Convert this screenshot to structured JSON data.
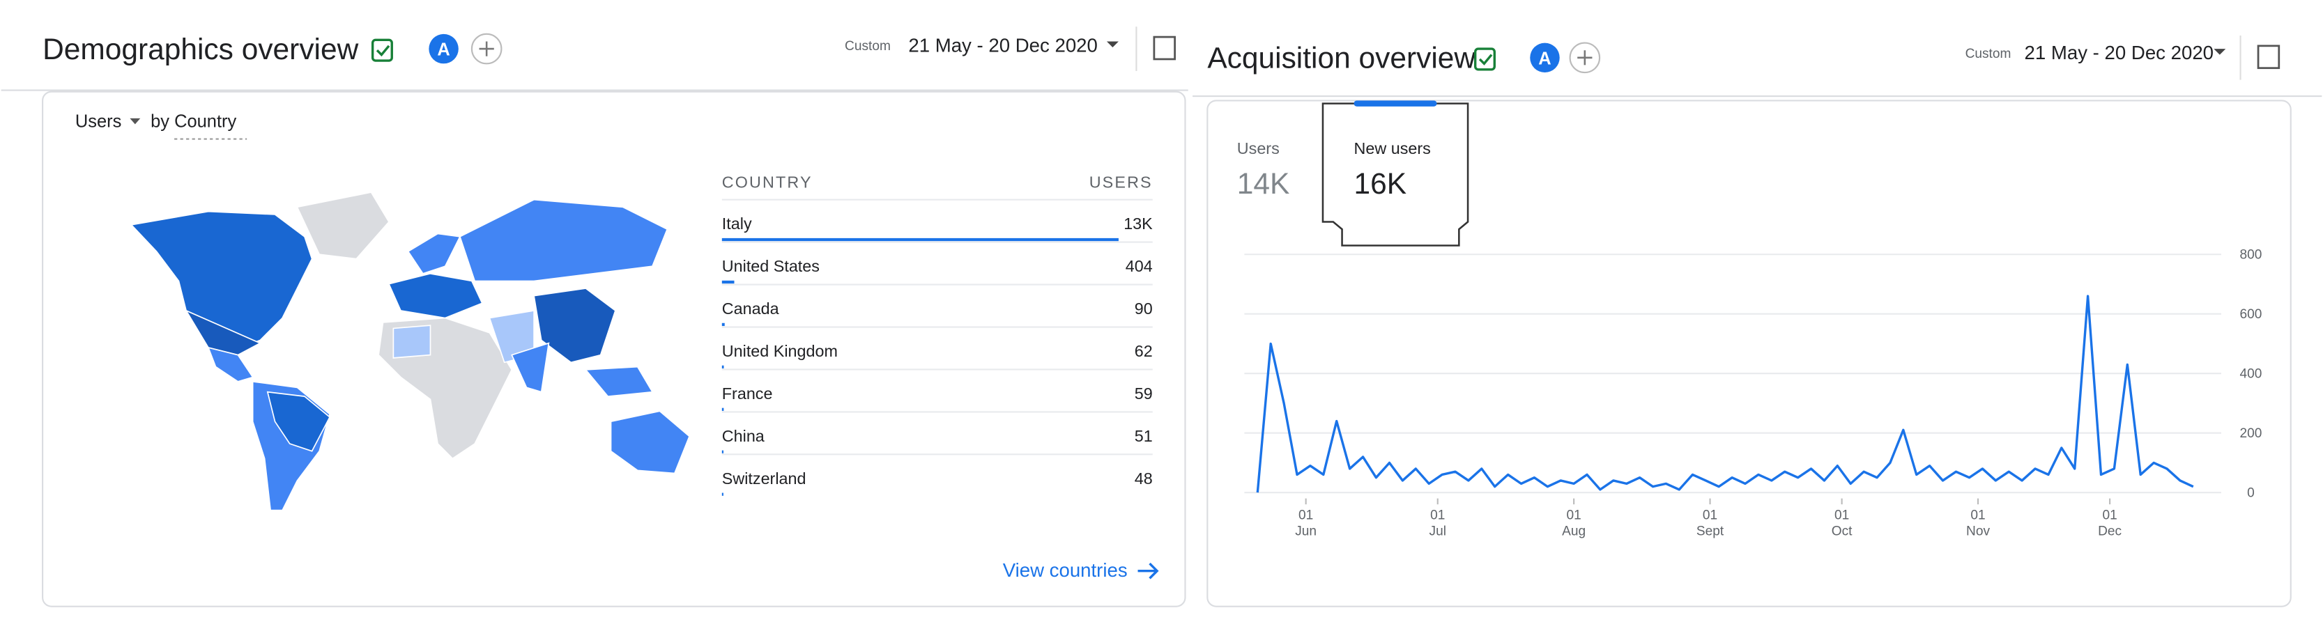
{
  "demographics": {
    "title": "Demographics overview",
    "badge": "A",
    "date_prefix": "Custom",
    "date_range": "21 May - 20 Dec 2020",
    "metric": "Users",
    "dimension": "by Country",
    "table": {
      "columns": [
        "COUNTRY",
        "USERS"
      ],
      "countries": [
        "Italy",
        "United States",
        "Canada",
        "United Kingdom",
        "France",
        "China",
        "Switzerland"
      ],
      "values": [
        13000,
        404,
        90,
        62,
        59,
        51,
        48
      ],
      "value_labels": [
        "13K",
        "404",
        "90",
        "62",
        "59",
        "51",
        "48"
      ]
    },
    "link": "View countries"
  },
  "acquisition": {
    "title": "Acquisition overview",
    "badge": "A",
    "date_prefix": "Custom",
    "date_range": "21 May - 20 Dec 2020",
    "tabs": [
      {
        "label": "Users",
        "value": "14K"
      },
      {
        "label": "New users",
        "value": "16K"
      }
    ]
  },
  "chart_data": {
    "type": "line",
    "color": "#1a73e8",
    "grid": true,
    "x": [
      "2020-05-21",
      "2020-05-24",
      "2020-05-27",
      "2020-05-30",
      "2020-06-02",
      "2020-06-05",
      "2020-06-08",
      "2020-06-11",
      "2020-06-14",
      "2020-06-17",
      "2020-06-20",
      "2020-06-23",
      "2020-06-26",
      "2020-06-29",
      "2020-07-02",
      "2020-07-05",
      "2020-07-08",
      "2020-07-11",
      "2020-07-14",
      "2020-07-17",
      "2020-07-20",
      "2020-07-23",
      "2020-07-26",
      "2020-07-29",
      "2020-08-01",
      "2020-08-04",
      "2020-08-07",
      "2020-08-10",
      "2020-08-13",
      "2020-08-16",
      "2020-08-19",
      "2020-08-22",
      "2020-08-25",
      "2020-08-28",
      "2020-08-31",
      "2020-09-03",
      "2020-09-06",
      "2020-09-09",
      "2020-09-12",
      "2020-09-15",
      "2020-09-18",
      "2020-09-21",
      "2020-09-24",
      "2020-09-27",
      "2020-09-30",
      "2020-10-03",
      "2020-10-06",
      "2020-10-09",
      "2020-10-12",
      "2020-10-15",
      "2020-10-18",
      "2020-10-21",
      "2020-10-24",
      "2020-10-27",
      "2020-10-30",
      "2020-11-02",
      "2020-11-05",
      "2020-11-08",
      "2020-11-11",
      "2020-11-14",
      "2020-11-17",
      "2020-11-20",
      "2020-11-23",
      "2020-11-26",
      "2020-11-29",
      "2020-12-02",
      "2020-12-05",
      "2020-12-08",
      "2020-12-11",
      "2020-12-14",
      "2020-12-17",
      "2020-12-20"
    ],
    "values": [
      0,
      500,
      300,
      60,
      90,
      60,
      240,
      80,
      120,
      50,
      100,
      40,
      80,
      30,
      60,
      70,
      40,
      80,
      20,
      60,
      30,
      50,
      20,
      40,
      30,
      60,
      10,
      40,
      30,
      50,
      20,
      30,
      10,
      60,
      40,
      20,
      50,
      30,
      60,
      40,
      70,
      50,
      80,
      40,
      90,
      30,
      70,
      50,
      100,
      210,
      60,
      90,
      40,
      70,
      50,
      80,
      40,
      70,
      40,
      80,
      60,
      150,
      80,
      660,
      60,
      80,
      430,
      60,
      100,
      80,
      40,
      20
    ],
    "xlim": [
      "2020-05-18",
      "2020-12-24"
    ],
    "xticks": [
      {
        "value": "2020-06-01",
        "label": [
          "01",
          "Jun"
        ]
      },
      {
        "value": "2020-07-01",
        "label": [
          "01",
          "Jul"
        ]
      },
      {
        "value": "2020-08-01",
        "label": [
          "01",
          "Aug"
        ]
      },
      {
        "value": "2020-09-01",
        "label": [
          "01",
          "Sept"
        ]
      },
      {
        "value": "2020-10-01",
        "label": [
          "01",
          "Oct"
        ]
      },
      {
        "value": "2020-11-01",
        "label": [
          "01",
          "Nov"
        ]
      },
      {
        "value": "2020-12-01",
        "label": [
          "01",
          "Dec"
        ]
      }
    ],
    "ylim": [
      0,
      800
    ],
    "yticks": [
      0,
      200,
      400,
      600,
      800
    ]
  }
}
